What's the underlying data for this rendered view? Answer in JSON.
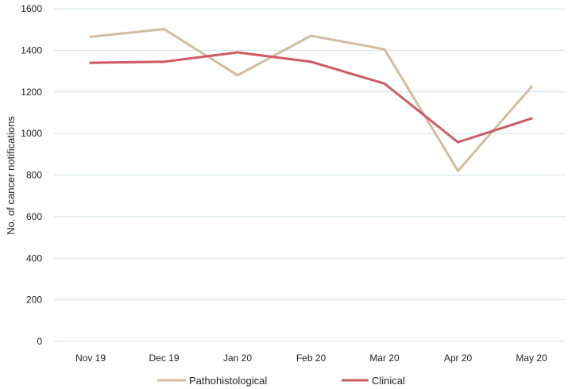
{
  "chart_data": {
    "type": "line",
    "title": "",
    "xlabel": "",
    "ylabel": "No. of cancer notifications",
    "categories": [
      "Nov 19",
      "Dec 19",
      "Jan 20",
      "Feb 20",
      "Mar 20",
      "Apr 20",
      "May 20"
    ],
    "ylim": [
      0,
      1600
    ],
    "yticks": [
      0,
      200,
      400,
      600,
      800,
      1000,
      1200,
      1400,
      1600
    ],
    "grid": true,
    "legend_position": "bottom",
    "series": [
      {
        "name": "Pathohistological",
        "color": "#d4bc9e",
        "values": [
          1465,
          1502,
          1280,
          1470,
          1405,
          820,
          1225
        ]
      },
      {
        "name": "Clinical",
        "color": "#cf5b62",
        "values": [
          1340,
          1345,
          1390,
          1345,
          1240,
          958,
          1072
        ]
      }
    ]
  }
}
